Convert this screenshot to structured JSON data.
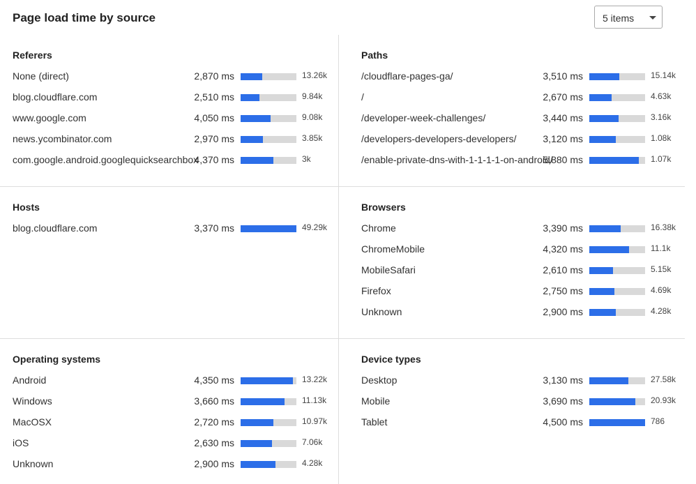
{
  "title": "Page load time by source",
  "items_select": "5 items",
  "sections": [
    {
      "title": "Referers",
      "rows": [
        {
          "name": "None (direct)",
          "ms": "2,870 ms",
          "fill": 0.39,
          "count": "13.26k"
        },
        {
          "name": "blog.cloudflare.com",
          "ms": "2,510 ms",
          "fill": 0.34,
          "count": "9.84k"
        },
        {
          "name": "www.google.com",
          "ms": "4,050 ms",
          "fill": 0.54,
          "count": "9.08k"
        },
        {
          "name": "news.ycombinator.com",
          "ms": "2,970 ms",
          "fill": 0.4,
          "count": "3.85k"
        },
        {
          "name": "com.google.android.googlequicksearchbox",
          "ms": "4,370 ms",
          "fill": 0.59,
          "count": "3k"
        }
      ]
    },
    {
      "title": "Paths",
      "rows": [
        {
          "name": "/cloudflare-pages-ga/",
          "ms": "3,510 ms",
          "fill": 0.54,
          "count": "15.14k"
        },
        {
          "name": "/",
          "ms": "2,670 ms",
          "fill": 0.4,
          "count": "4.63k"
        },
        {
          "name": "/developer-week-challenges/",
          "ms": "3,440 ms",
          "fill": 0.52,
          "count": "3.16k"
        },
        {
          "name": "/developers-developers-developers/",
          "ms": "3,120 ms",
          "fill": 0.47,
          "count": "1.08k"
        },
        {
          "name": "/enable-private-dns-with-1-1-1-1-on-android/",
          "ms": "5,880 ms",
          "fill": 0.89,
          "count": "1.07k"
        }
      ]
    },
    {
      "title": "Hosts",
      "rows": [
        {
          "name": "blog.cloudflare.com",
          "ms": "3,370 ms",
          "fill": 1.0,
          "count": "49.29k"
        }
      ]
    },
    {
      "title": "Browsers",
      "rows": [
        {
          "name": "Chrome",
          "ms": "3,390 ms",
          "fill": 0.56,
          "count": "16.38k"
        },
        {
          "name": "ChromeMobile",
          "ms": "4,320 ms",
          "fill": 0.71,
          "count": "11.1k"
        },
        {
          "name": "MobileSafari",
          "ms": "2,610 ms",
          "fill": 0.43,
          "count": "5.15k"
        },
        {
          "name": "Firefox",
          "ms": "2,750 ms",
          "fill": 0.45,
          "count": "4.69k"
        },
        {
          "name": "Unknown",
          "ms": "2,900 ms",
          "fill": 0.48,
          "count": "4.28k"
        }
      ]
    },
    {
      "title": "Operating systems",
      "rows": [
        {
          "name": "Android",
          "ms": "4,350 ms",
          "fill": 0.94,
          "count": "13.22k"
        },
        {
          "name": "Windows",
          "ms": "3,660 ms",
          "fill": 0.79,
          "count": "11.13k"
        },
        {
          "name": "MacOSX",
          "ms": "2,720 ms",
          "fill": 0.59,
          "count": "10.97k"
        },
        {
          "name": "iOS",
          "ms": "2,630 ms",
          "fill": 0.56,
          "count": "7.06k"
        },
        {
          "name": "Unknown",
          "ms": "2,900 ms",
          "fill": 0.62,
          "count": "4.28k"
        }
      ]
    },
    {
      "title": "Device types",
      "rows": [
        {
          "name": "Desktop",
          "ms": "3,130 ms",
          "fill": 0.7,
          "count": "27.58k"
        },
        {
          "name": "Mobile",
          "ms": "3,690 ms",
          "fill": 0.83,
          "count": "20.93k"
        },
        {
          "name": "Tablet",
          "ms": "4,500 ms",
          "fill": 1.0,
          "count": "786"
        }
      ]
    }
  ]
}
